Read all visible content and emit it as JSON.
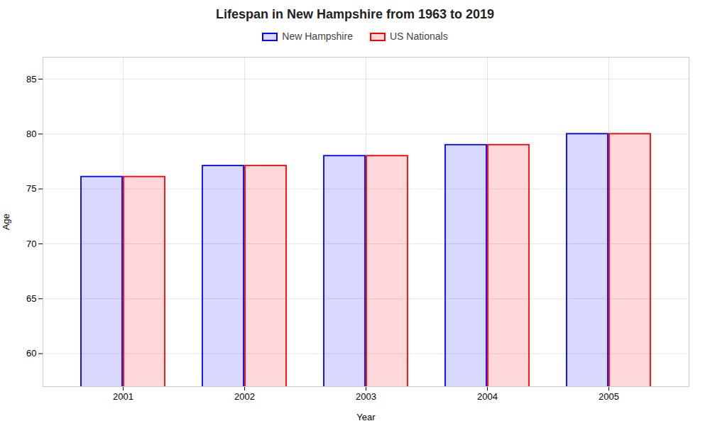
{
  "chart_data": {
    "type": "bar",
    "title": "Lifespan in New Hampshire from 1963 to 2019",
    "xlabel": "Year",
    "ylabel": "Age",
    "categories": [
      "2001",
      "2002",
      "2003",
      "2004",
      "2005"
    ],
    "series": [
      {
        "name": "New Hampshire",
        "color": "#0000ff",
        "values": [
          76.1,
          77.1,
          78.0,
          79.0,
          80.0
        ]
      },
      {
        "name": "US Nationals",
        "color": "#ff0000",
        "values": [
          76.1,
          77.1,
          78.0,
          79.0,
          80.0
        ]
      }
    ],
    "ylim": [
      57,
      87
    ],
    "yticks": [
      60,
      65,
      70,
      75,
      80,
      85
    ],
    "grid": true,
    "legend": "top"
  }
}
